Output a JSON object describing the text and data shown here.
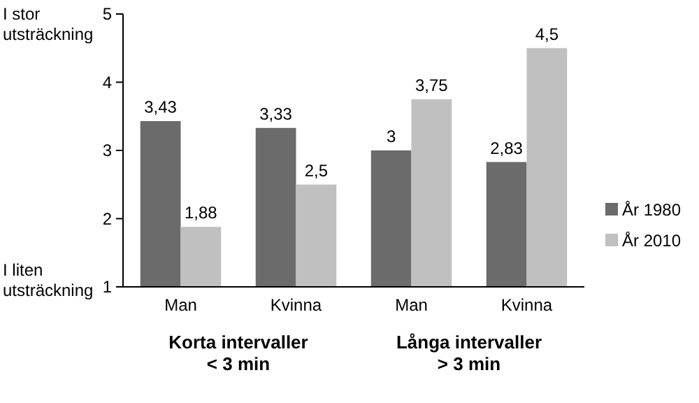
{
  "chart_data": {
    "type": "bar",
    "categories": [
      "Man",
      "Kvinna",
      "Man",
      "Kvinna"
    ],
    "series": [
      {
        "name": "År 1980",
        "color": "#6b6b6b",
        "values": [
          3.43,
          3.33,
          3,
          2.83
        ],
        "value_labels": [
          "3,43",
          "3,33",
          "3",
          "2,83"
        ]
      },
      {
        "name": "År 2010",
        "color": "#c0c0c0",
        "values": [
          1.88,
          2.5,
          3.75,
          4.5
        ],
        "value_labels": [
          "1,88",
          "2,5",
          "3,75",
          "4,5"
        ]
      }
    ],
    "ylim": [
      1,
      5
    ],
    "yticks": [
      1,
      2,
      3,
      4,
      5
    ],
    "legend": "right",
    "annotations": [
      "I stor\nutsträckning",
      "I liten\nutsträckning",
      "Korta intervaller\n< 3 min",
      "Långa intervaller\n> 3 min"
    ]
  }
}
